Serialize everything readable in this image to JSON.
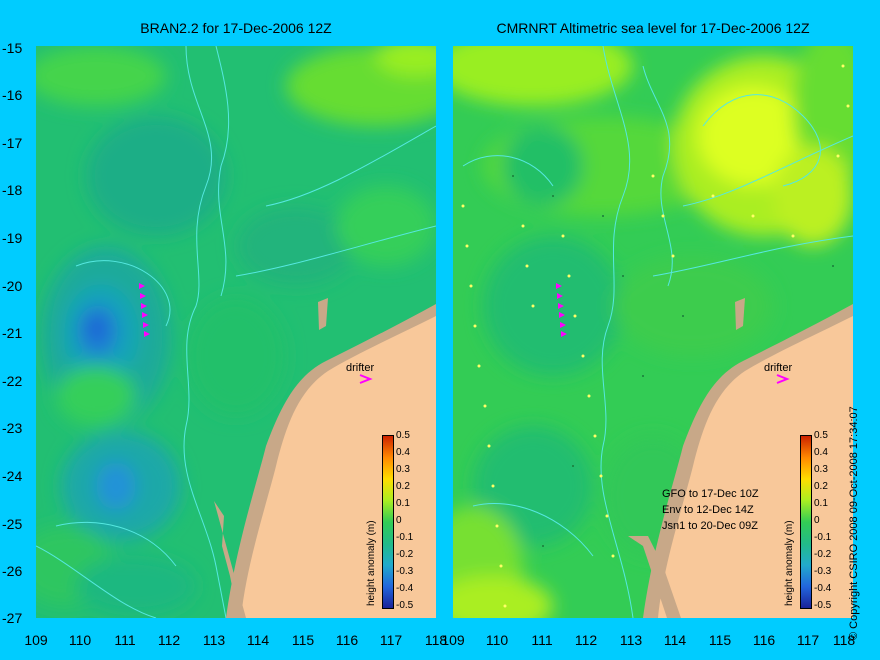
{
  "panels": [
    {
      "title": "BRAN2.2 for 17-Dec-2006 12Z"
    },
    {
      "title": "CMRNRT Altimetric sea level  for 17-Dec-2006 12Z"
    }
  ],
  "y_axis": {
    "ticks": [
      "-15",
      "-16",
      "-17",
      "-18",
      "-19",
      "-20",
      "-21",
      "-22",
      "-23",
      "-24",
      "-25",
      "-26",
      "-27"
    ]
  },
  "x_axis": {
    "ticks": [
      "109",
      "110",
      "111",
      "112",
      "113",
      "114",
      "115",
      "116",
      "117",
      "118"
    ]
  },
  "drifter_label": "drifter",
  "satellite_notes": [
    "GFO to 17-Dec 10Z",
    "Env to 12-Dec 14Z",
    "Jsn1 to 20-Dec 09Z"
  ],
  "colorbar": {
    "title": "height anomaly (m)",
    "labels": [
      "0.5",
      "0.4",
      "0.3",
      "0.2",
      "0.1",
      "0",
      "-0.1",
      "-0.2",
      "-0.3",
      "-0.4",
      "-0.5"
    ]
  },
  "copyright": "© Copyright CSIRO 2008    09-Oct-2008 17:34:07",
  "colors": {
    "background": "#00ccff",
    "land": "#f8c89a",
    "shelf_land": "#c8a888",
    "ocean_base": "#22c866",
    "drifter": "#ff00ff",
    "contour": "#55e8e0"
  }
}
